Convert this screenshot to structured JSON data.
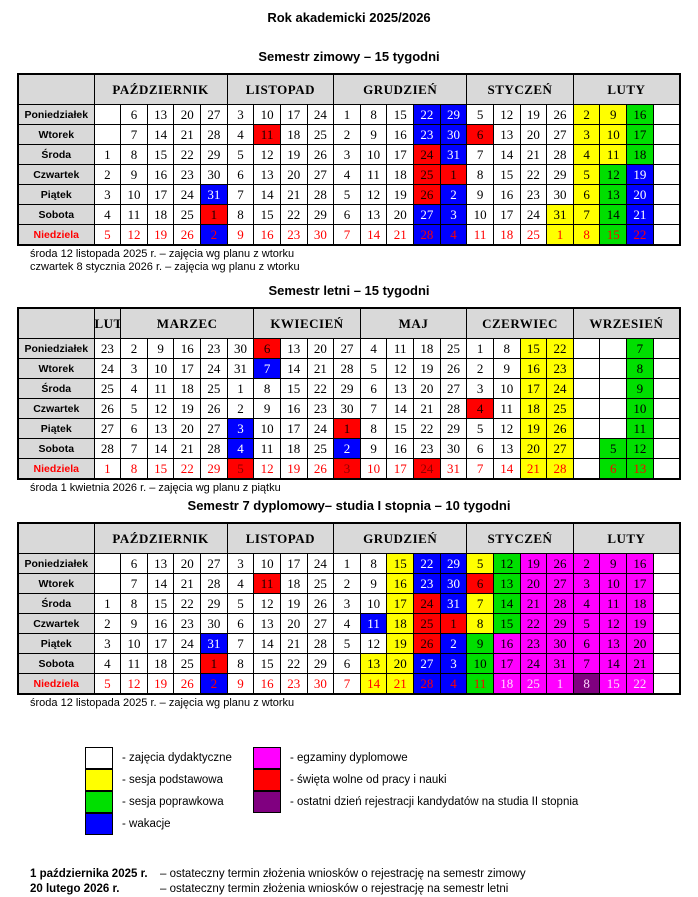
{
  "page_title": "Rok akademicki 2025/2026",
  "colors": {
    "yellow": "#FFFF00",
    "green": "#00DF00",
    "blue": "#0000FF",
    "red": "#FF0000",
    "magenta": "#FF00FF",
    "purple": "#800080",
    "header_gray": "#D9D9D9",
    "sunday_text": "#FF0000"
  },
  "tables": [
    {
      "id": "zimowy",
      "title": "Semestr zimowy – 15 tygodni",
      "months": [
        {
          "label": "PAŹDZIERNIK",
          "span": 5
        },
        {
          "label": "LISTOPAD",
          "span": 4
        },
        {
          "label": "GRUDZIEŃ",
          "span": 5
        },
        {
          "label": "STYCZEŃ",
          "span": 4
        },
        {
          "label": "LUTY",
          "span": 4
        }
      ],
      "rows": [
        {
          "day": "Poniedziałek",
          "cells": [
            "",
            "6",
            "13",
            "20",
            "27",
            "3",
            "10",
            "17",
            "24",
            "1",
            "8",
            "15",
            "22|b",
            "29|b",
            "5",
            "12",
            "19",
            "26",
            "2|y",
            "9|y",
            "16|g",
            ""
          ]
        },
        {
          "day": "Wtorek",
          "cells": [
            "",
            "7",
            "14",
            "21",
            "28",
            "4",
            "11|r",
            "18",
            "25",
            "2",
            "9",
            "16",
            "23|b",
            "30|b",
            "6|r",
            "13",
            "20",
            "27",
            "3|y",
            "10|y",
            "17|g",
            ""
          ]
        },
        {
          "day": "Środa",
          "cells": [
            "1",
            "8",
            "15",
            "22",
            "29",
            "5",
            "12",
            "19",
            "26",
            "3",
            "10",
            "17",
            "24|r",
            "31|b",
            "7",
            "14",
            "21",
            "28",
            "4|y",
            "11|y",
            "18|g",
            ""
          ]
        },
        {
          "day": "Czwartek",
          "cells": [
            "2",
            "9",
            "16",
            "23",
            "30",
            "6",
            "13",
            "20",
            "27",
            "4",
            "11",
            "18",
            "25|r",
            "1|r",
            "8",
            "15",
            "22",
            "29",
            "5|y",
            "12|g",
            "19|b",
            ""
          ]
        },
        {
          "day": "Piątek",
          "cells": [
            "3",
            "10",
            "17",
            "24",
            "31|b",
            "7",
            "14",
            "21",
            "28",
            "5",
            "12",
            "19",
            "26|r",
            "2|b",
            "9",
            "16",
            "23",
            "30",
            "6|y",
            "13|g",
            "20|b",
            ""
          ]
        },
        {
          "day": "Sobota",
          "cells": [
            "4",
            "11",
            "18",
            "25",
            "1|r",
            "8",
            "15",
            "22",
            "29",
            "6",
            "13",
            "20",
            "27|b",
            "3|b",
            "10",
            "17",
            "24",
            "31|y",
            "7|y",
            "14|g",
            "21|b",
            ""
          ]
        },
        {
          "day": "Niedziela",
          "sunday": true,
          "cells": [
            "5",
            "12",
            "19",
            "26",
            "2|b",
            "9",
            "16",
            "23",
            "30",
            "7",
            "14",
            "21",
            "28|b",
            "4|b",
            "11",
            "18",
            "25",
            "1|y",
            "8|y",
            "15|g",
            "22|b",
            ""
          ]
        }
      ],
      "notes": [
        "środa 12 listopada 2025 r. – zajęcia wg planu z wtorku",
        "czwartek 8 stycznia 2026 r. – zajęcia wg planu z wtorku"
      ]
    },
    {
      "id": "letni",
      "title": "Semestr letni – 15 tygodni",
      "months": [
        {
          "label": "LUTY",
          "span": 1
        },
        {
          "label": "MARZEC",
          "span": 5
        },
        {
          "label": "KWIECIEŃ",
          "span": 4
        },
        {
          "label": "MAJ",
          "span": 4
        },
        {
          "label": "CZERWIEC",
          "span": 4
        },
        {
          "label": "WRZESIEŃ",
          "span": 4
        }
      ],
      "rows": [
        {
          "day": "Poniedziałek",
          "cells": [
            "23",
            "2",
            "9",
            "16",
            "23",
            "30",
            "6|r",
            "13",
            "20",
            "27",
            "4",
            "11",
            "18",
            "25",
            "1",
            "8",
            "15|y",
            "22|y",
            "",
            "",
            "7|g",
            ""
          ]
        },
        {
          "day": "Wtorek",
          "cells": [
            "24",
            "3",
            "10",
            "17",
            "24",
            "31",
            "7|b",
            "14",
            "21",
            "28",
            "5",
            "12",
            "19",
            "26",
            "2",
            "9",
            "16|y",
            "23|y",
            "",
            "",
            "8|g",
            ""
          ]
        },
        {
          "day": "Środa",
          "cells": [
            "25",
            "4",
            "11",
            "18",
            "25",
            "1",
            "8",
            "15",
            "22",
            "29",
            "6",
            "13",
            "20",
            "27",
            "3",
            "10",
            "17|y",
            "24|y",
            "",
            "",
            "9|g",
            ""
          ]
        },
        {
          "day": "Czwartek",
          "cells": [
            "26",
            "5",
            "12",
            "19",
            "26",
            "2",
            "9",
            "16",
            "23",
            "30",
            "7",
            "14",
            "21",
            "28",
            "4|r",
            "11",
            "18|y",
            "25|y",
            "",
            "",
            "10|g",
            ""
          ]
        },
        {
          "day": "Piątek",
          "cells": [
            "27",
            "6",
            "13",
            "20",
            "27",
            "3|b",
            "10",
            "17",
            "24",
            "1|r",
            "8",
            "15",
            "22",
            "29",
            "5",
            "12",
            "19|y",
            "26|y",
            "",
            "",
            "11|g",
            ""
          ]
        },
        {
          "day": "Sobota",
          "cells": [
            "28",
            "7",
            "14",
            "21",
            "28",
            "4|b",
            "11",
            "18",
            "25",
            "2|b",
            "9",
            "16",
            "23",
            "30",
            "6",
            "13",
            "20|y",
            "27|y",
            "",
            "5|g",
            "12|g",
            ""
          ]
        },
        {
          "day": "Niedziela",
          "sunday": true,
          "cells": [
            "1",
            "8",
            "15",
            "22",
            "29",
            "5|r",
            "12",
            "19",
            "26",
            "3|r",
            "10",
            "17",
            "24|r",
            "31",
            "7",
            "14",
            "21|y",
            "28|y",
            "",
            "6|g",
            "13|g",
            ""
          ]
        }
      ],
      "notes": [
        "środa 1  kwietnia 2026 r. – zajęcia wg planu z piątku"
      ]
    },
    {
      "id": "dyplomowy",
      "title": "Semestr 7 dyplomowy– studia I stopnia – 10 tygodni",
      "months": [
        {
          "label": "PAŹDZIERNIK",
          "span": 5
        },
        {
          "label": "LISTOPAD",
          "span": 4
        },
        {
          "label": "GRUDZIEŃ",
          "span": 5
        },
        {
          "label": "STYCZEŃ",
          "span": 4
        },
        {
          "label": "LUTY",
          "span": 4
        }
      ],
      "rows": [
        {
          "day": "Poniedziałek",
          "cells": [
            "",
            "6",
            "13",
            "20",
            "27",
            "3",
            "10",
            "17",
            "24",
            "1",
            "8",
            "15|y",
            "22|b",
            "29|b",
            "5|y",
            "12|g",
            "19|m",
            "26|m",
            "2|m",
            "9|m",
            "16|m",
            ""
          ]
        },
        {
          "day": "Wtorek",
          "cells": [
            "",
            "7",
            "14",
            "21",
            "28",
            "4",
            "11|r",
            "18",
            "25",
            "2",
            "9",
            "16|y",
            "23|b",
            "30|b",
            "6|r",
            "13|g",
            "20|m",
            "27|m",
            "3|m",
            "10|m",
            "17|m",
            ""
          ]
        },
        {
          "day": "Środa",
          "cells": [
            "1",
            "8",
            "15",
            "22",
            "29",
            "5",
            "12",
            "19",
            "26",
            "3",
            "10",
            "17|y",
            "24|r",
            "31|b",
            "7|y",
            "14|g",
            "21|m",
            "28|m",
            "4|m",
            "11|m",
            "18|m",
            ""
          ]
        },
        {
          "day": "Czwartek",
          "cells": [
            "2",
            "9",
            "16",
            "23",
            "30",
            "6",
            "13",
            "20",
            "27",
            "4",
            "11|b",
            "18|y",
            "25|r",
            "1|r",
            "8|y",
            "15|g",
            "22|m",
            "29|m",
            "5|m",
            "12|m",
            "19|m",
            ""
          ]
        },
        {
          "day": "Piątek",
          "cells": [
            "3",
            "10",
            "17",
            "24",
            "31|b",
            "7",
            "14",
            "21",
            "28",
            "5",
            "12",
            "19|y",
            "26|r",
            "2|b",
            "9|g",
            "16|m",
            "23|m",
            "30|m",
            "6|m",
            "13|m",
            "20|m",
            ""
          ]
        },
        {
          "day": "Sobota",
          "cells": [
            "4",
            "11",
            "18",
            "25",
            "1|r",
            "8",
            "15",
            "22",
            "29",
            "6",
            "13|y",
            "20|y",
            "27|b",
            "3|b",
            "10|g",
            "17|m",
            "24|m",
            "31|m",
            "7|m",
            "14|m",
            "21|m",
            ""
          ]
        },
        {
          "day": "Niedziela",
          "sunday": true,
          "cells": [
            "5",
            "12",
            "19",
            "26",
            "2|b",
            "9",
            "16",
            "23",
            "30",
            "7",
            "14|y",
            "21|y",
            "28|b",
            "4|b",
            "11|g",
            "18|m",
            "25|m",
            "1|m",
            "8|p",
            "15|m",
            "22|m",
            ""
          ]
        }
      ],
      "notes": [
        "środa 12 listopada 2025 r. – zajęcia wg planu z wtorku"
      ]
    }
  ],
  "legend": {
    "left": [
      {
        "color": "w",
        "label": "- zajęcia dydaktyczne"
      },
      {
        "color": "y",
        "label": "- sesja podstawowa"
      },
      {
        "color": "g",
        "label": "- sesja poprawkowa"
      },
      {
        "color": "b",
        "label": "- wakacje"
      }
    ],
    "right": [
      {
        "color": "m",
        "label": "- egzaminy dyplomowe"
      },
      {
        "color": "r",
        "label": "- święta wolne od pracy i nauki"
      },
      {
        "color": "p",
        "label": "- ostatni dzień rejestracji kandydatów na studia II stopnia"
      }
    ]
  },
  "footer_notes": [
    {
      "date": "1 października 2025 r.",
      "text": "– ostateczny termin złożenia wniosków o rejestrację na semestr  zimowy"
    },
    {
      "date": "20 lutego 2026 r.",
      "text": "– ostateczny termin złożenia wniosków o rejestrację na semestr letni"
    }
  ]
}
